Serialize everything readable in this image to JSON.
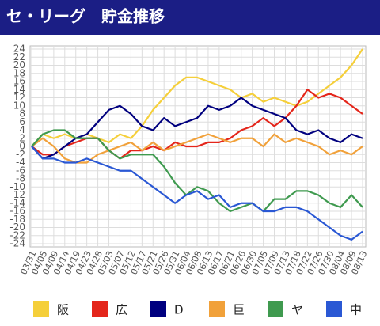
{
  "chart_data": {
    "type": "line",
    "title": "セ・リーグ　貯金推移",
    "categories": [
      "03/31",
      "04/05",
      "04/09",
      "04/14",
      "04/19",
      "04/23",
      "04/28",
      "05/03",
      "05/07",
      "05/12",
      "05/17",
      "05/21",
      "05/26",
      "05/31",
      "06/04",
      "06/08",
      "06/13",
      "06/17",
      "06/21",
      "06/26",
      "06/30",
      "07/05",
      "07/09",
      "07/13",
      "07/18",
      "07/22",
      "07/26",
      "07/30",
      "08/04",
      "08/09",
      "08/13"
    ],
    "series": [
      {
        "name": "阪",
        "color": "#f5cf3a",
        "values": [
          0,
          3,
          2,
          3,
          2,
          3,
          2,
          1,
          3,
          2,
          5,
          9,
          12,
          15,
          17,
          17,
          16,
          15,
          14,
          12,
          13,
          11,
          12,
          11,
          10,
          11,
          13,
          15,
          17,
          20,
          24
        ]
      },
      {
        "name": "広",
        "color": "#e4261b",
        "values": [
          0,
          -2,
          -2,
          0,
          1,
          2,
          2,
          -1,
          -3,
          -1,
          -1,
          0,
          -1,
          1,
          0,
          0,
          1,
          1,
          2,
          4,
          5,
          7,
          5,
          7,
          10,
          14,
          12,
          13,
          12,
          10,
          8
        ]
      },
      {
        "name": "D",
        "color": "#00007f",
        "values": [
          0,
          -3,
          -2,
          0,
          2,
          3,
          6,
          9,
          10,
          8,
          5,
          4,
          7,
          5,
          6,
          7,
          10,
          9,
          10,
          12,
          10,
          9,
          8,
          7,
          4,
          3,
          4,
          2,
          1,
          3,
          2
        ]
      },
      {
        "name": "巨",
        "color": "#f1a13a",
        "values": [
          0,
          2,
          0,
          -3,
          -4,
          -4,
          -2,
          -1,
          0,
          1,
          -1,
          1,
          -1,
          0,
          1,
          2,
          3,
          2,
          1,
          2,
          2,
          0,
          3,
          1,
          2,
          1,
          0,
          -2,
          -1,
          -2,
          0
        ]
      },
      {
        "name": "ヤ",
        "color": "#3f9a4f",
        "values": [
          0,
          3,
          4,
          4,
          2,
          2,
          2,
          -1,
          -3,
          -2,
          -2,
          -2,
          -5,
          -9,
          -12,
          -10,
          -11,
          -14,
          -16,
          -15,
          -14,
          -16,
          -13,
          -13,
          -11,
          -11,
          -12,
          -14,
          -15,
          -12,
          -15
        ]
      },
      {
        "name": "中",
        "color": "#2a58d4",
        "values": [
          0,
          -3,
          -3,
          -4,
          -4,
          -3,
          -4,
          -5,
          -6,
          -6,
          -8,
          -10,
          -12,
          -14,
          -12,
          -11,
          -13,
          -12,
          -15,
          -14,
          -14,
          -16,
          -16,
          -15,
          -15,
          -16,
          -18,
          -20,
          -22,
          -23,
          -21
        ]
      }
    ],
    "ylim": [
      -24,
      24
    ],
    "yticks": [
      -24,
      -22,
      -20,
      -18,
      -16,
      -14,
      -12,
      -10,
      -8,
      -6,
      -4,
      -2,
      0,
      2,
      4,
      6,
      8,
      10,
      12,
      14,
      16,
      18,
      20,
      22,
      24
    ],
    "grid": true,
    "legend": "bottom"
  }
}
